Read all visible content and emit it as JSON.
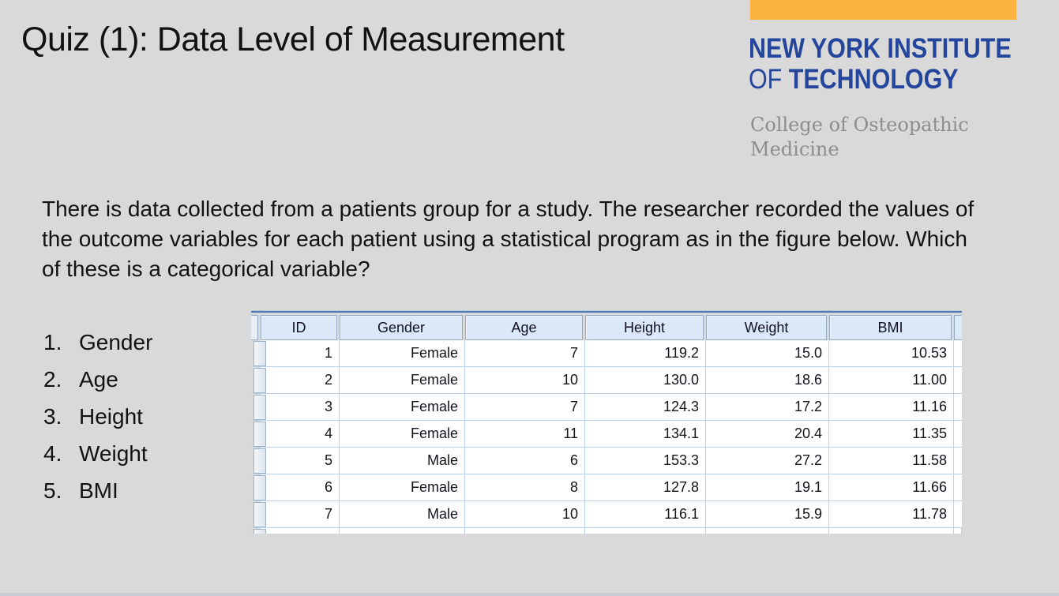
{
  "slide": {
    "title": "Quiz (1): Data Level of Measurement",
    "background_color": "#d9d9d9"
  },
  "logo": {
    "accent_bar_color": "#fcb43e",
    "blue_color": "#24459c",
    "gray_color": "#8d8d8d",
    "line1": "NEW YORK INSTITUTE",
    "line2_of": "OF",
    "line2_rest": "TECHNOLOGY",
    "college": "College of Osteopathic Medicine"
  },
  "question": {
    "text": "There is data collected from a patients group for a study. The researcher recorded the values of the outcome variables for each patient using a statistical program as in the figure below. Which of these is a categorical variable?"
  },
  "options": [
    {
      "number": "1.",
      "label": "Gender"
    },
    {
      "number": "2.",
      "label": "Age"
    },
    {
      "number": "3.",
      "label": "Height"
    },
    {
      "number": "4.",
      "label": "Weight"
    },
    {
      "number": "5.",
      "label": "BMI"
    }
  ],
  "table": {
    "header_bg": "#dae8f8",
    "border_color": "#b8d2ee",
    "top_line_color": "#4a76a8",
    "columns": [
      "ID",
      "Gender",
      "Age",
      "Height",
      "Weight",
      "BMI"
    ],
    "rows": [
      [
        "1",
        "Female",
        "7",
        "119.2",
        "15.0",
        "10.53"
      ],
      [
        "2",
        "Female",
        "10",
        "130.0",
        "18.6",
        "11.00"
      ],
      [
        "3",
        "Female",
        "7",
        "124.3",
        "17.2",
        "11.16"
      ],
      [
        "4",
        "Female",
        "11",
        "134.1",
        "20.4",
        "11.35"
      ],
      [
        "5",
        "Male",
        "6",
        "153.3",
        "27.2",
        "11.58"
      ],
      [
        "6",
        "Female",
        "8",
        "127.8",
        "19.1",
        "11.66"
      ],
      [
        "7",
        "Male",
        "10",
        "116.1",
        "15.9",
        "11.78"
      ]
    ]
  }
}
